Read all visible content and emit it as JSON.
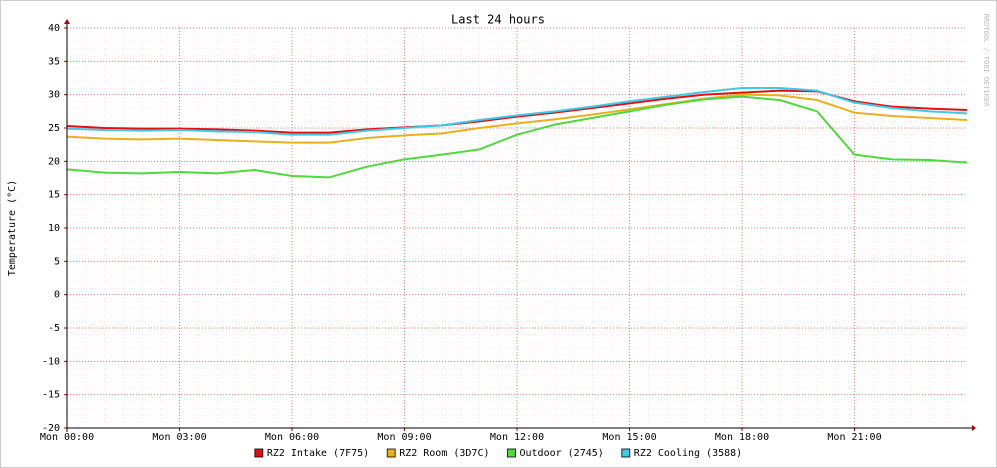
{
  "chart_data": {
    "type": "line",
    "title": "Last 24 hours",
    "y_label": "Temperature (°C)",
    "watermark": "RRDTOOL / TOBI OETIKER",
    "x": [
      0,
      1,
      2,
      3,
      4,
      5,
      6,
      7,
      8,
      9,
      10,
      11,
      12,
      13,
      14,
      15,
      16,
      17,
      18,
      19,
      20,
      21,
      22,
      23,
      24
    ],
    "xlim": [
      0,
      24
    ],
    "xticks": [
      {
        "value": 0,
        "label": "Mon 00:00"
      },
      {
        "value": 3,
        "label": "Mon 03:00"
      },
      {
        "value": 6,
        "label": "Mon 06:00"
      },
      {
        "value": 9,
        "label": "Mon 09:00"
      },
      {
        "value": 12,
        "label": "Mon 12:00"
      },
      {
        "value": 15,
        "label": "Mon 15:00"
      },
      {
        "value": 18,
        "label": "Mon 18:00"
      },
      {
        "value": 21,
        "label": "Mon 21:00"
      }
    ],
    "ylim": [
      -20,
      40
    ],
    "yticks": [
      -20,
      -15,
      -10,
      -5,
      0,
      5,
      10,
      15,
      20,
      25,
      30,
      35,
      40
    ],
    "grid": true,
    "series": [
      {
        "name": "RZ2 Intake (7F75)",
        "color": "#e01010",
        "values": [
          25.3,
          25.0,
          24.9,
          24.9,
          24.8,
          24.6,
          24.3,
          24.3,
          24.8,
          25.1,
          25.4,
          26.0,
          26.7,
          27.3,
          28.0,
          28.7,
          29.4,
          30.0,
          30.3,
          30.6,
          30.5,
          29.0,
          28.2,
          27.9,
          27.7
        ]
      },
      {
        "name": "RZ2 Room (3D7C)",
        "color": "#e8b020",
        "values": [
          23.7,
          23.4,
          23.3,
          23.4,
          23.2,
          23.0,
          22.8,
          22.8,
          23.5,
          23.9,
          24.2,
          25.0,
          25.7,
          26.3,
          27.0,
          27.8,
          28.6,
          29.4,
          30.0,
          29.9,
          29.2,
          27.3,
          26.8,
          26.5,
          26.2
        ]
      },
      {
        "name": "Outdoor (2745)",
        "color": "#50d840",
        "values": [
          18.8,
          18.3,
          18.2,
          18.4,
          18.2,
          18.7,
          17.8,
          17.6,
          19.2,
          20.3,
          21.0,
          21.8,
          24.0,
          25.5,
          26.5,
          27.5,
          28.5,
          29.3,
          29.7,
          29.2,
          27.5,
          21.0,
          20.3,
          20.2,
          19.8
        ]
      },
      {
        "name": "RZ2 Cooling (3588)",
        "color": "#40c8e8",
        "values": [
          24.9,
          24.7,
          24.6,
          24.7,
          24.5,
          24.4,
          24.0,
          24.0,
          24.6,
          25.0,
          25.4,
          26.2,
          26.9,
          27.5,
          28.2,
          29.0,
          29.7,
          30.4,
          31.0,
          31.0,
          30.6,
          28.8,
          28.0,
          27.5,
          27.2
        ]
      }
    ]
  }
}
